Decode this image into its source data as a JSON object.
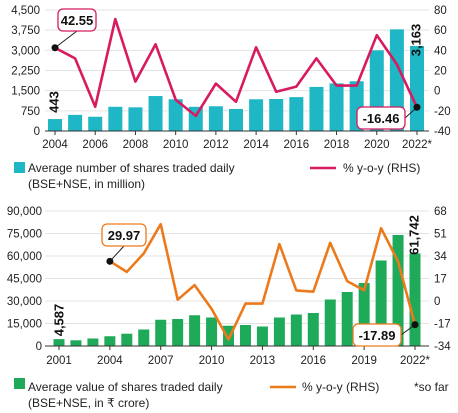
{
  "chart_data": [
    {
      "type": "bar",
      "years": [
        2004,
        2005,
        2006,
        2007,
        2008,
        2009,
        2010,
        2011,
        2012,
        2013,
        2014,
        2015,
        2016,
        2017,
        2018,
        2019,
        2020,
        2021,
        2022
      ],
      "x_ticks": [
        "2004",
        "2006",
        "2008",
        "2010",
        "2012",
        "2014",
        "2016",
        "2018",
        "2020",
        "2022*"
      ],
      "series": [
        {
          "name": "Average number of shares traded daily",
          "axis": "left",
          "values": [
            443,
            600,
            530,
            900,
            880,
            1300,
            1180,
            900,
            920,
            820,
            1180,
            1190,
            1260,
            1640,
            1770,
            1850,
            3000,
            3780,
            3163
          ]
        },
        {
          "name": "% y-o-y (RHS)",
          "axis": "right",
          "values": [
            42.55,
            32,
            -16,
            71,
            9,
            46,
            -9,
            -25,
            7,
            -11,
            43,
            -1,
            4,
            32,
            5,
            5,
            55,
            26,
            -16.46
          ]
        }
      ],
      "ylim_left": [
        0,
        4500
      ],
      "yticks_left": [
        "0",
        "750",
        "1,500",
        "2,250",
        "3,000",
        "3,750",
        "4,500"
      ],
      "ylim_right": [
        -40,
        80
      ],
      "yticks_right": [
        "-40",
        "-20",
        "0",
        "20",
        "40",
        "60",
        "80"
      ],
      "legend": {
        "bar_label_line1": "Average number of shares traded daily",
        "bar_label_line2": "(BSE+NSE, in million)",
        "line_label": "% y-o-y (RHS)"
      },
      "annotations": {
        "first_bar": "443",
        "last_bar": "3,163",
        "first_line": "42.55",
        "last_line": "-16.46"
      },
      "colors": {
        "bar": "#1fb6c6",
        "line": "#d81b60"
      }
    },
    {
      "type": "bar",
      "years": [
        2001,
        2002,
        2003,
        2004,
        2005,
        2006,
        2007,
        2008,
        2009,
        2010,
        2011,
        2012,
        2013,
        2014,
        2015,
        2016,
        2017,
        2018,
        2019,
        2020,
        2021,
        2022
      ],
      "x_ticks": [
        "2001",
        "2004",
        "2007",
        "2010",
        "2013",
        "2016",
        "2019",
        "2022*"
      ],
      "series": [
        {
          "name": "Average value of shares traded daily",
          "axis": "left",
          "values": [
            4587,
            3800,
            5000,
            6500,
            8200,
            11000,
            17500,
            18000,
            20500,
            19000,
            13500,
            14000,
            13000,
            19000,
            21000,
            22000,
            31000,
            36000,
            42000,
            57000,
            74000,
            61742
          ]
        },
        {
          "name": "% y-o-y (RHS)",
          "axis": "right",
          "values": [
            null,
            null,
            null,
            29.97,
            22,
            36,
            58,
            1,
            12,
            -6,
            -29,
            -2,
            -2,
            43,
            8,
            7,
            44,
            15,
            8,
            55,
            30,
            -17.89
          ]
        }
      ],
      "ylim_left": [
        0,
        90000
      ],
      "yticks_left": [
        "0",
        "15,000",
        "30,000",
        "45,000",
        "60,000",
        "75,000",
        "90,000"
      ],
      "ylim_right": [
        -34,
        68
      ],
      "yticks_right": [
        "-34",
        "-17",
        "0",
        "17",
        "34",
        "51",
        "68"
      ],
      "legend": {
        "bar_label_line1": "Average value of shares traded daily",
        "bar_label_line2": "(BSE+NSE, in ₹ crore)",
        "line_label": "% y-o-y (RHS)",
        "note": "*so far"
      },
      "annotations": {
        "first_bar": "4,587",
        "last_bar": "61,742",
        "first_line": "29.97",
        "last_line": "-17.89"
      },
      "colors": {
        "bar": "#1faa59",
        "line": "#ec7a1c"
      }
    }
  ]
}
